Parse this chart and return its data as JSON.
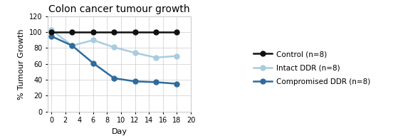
{
  "title": "Colon cancer tumour growth",
  "xlabel": "Day",
  "ylabel": "% Tumour Growth",
  "xlim": [
    -0.5,
    20
  ],
  "ylim": [
    0,
    120
  ],
  "xticks": [
    0,
    2,
    4,
    6,
    8,
    10,
    12,
    14,
    16,
    18,
    20
  ],
  "yticks": [
    0,
    20,
    40,
    60,
    80,
    100,
    120
  ],
  "series": [
    {
      "label": "Control (n=8)",
      "x": [
        0,
        3,
        6,
        9,
        12,
        15,
        18
      ],
      "y": [
        100,
        100,
        100,
        100,
        100,
        100,
        100
      ],
      "color": "#111111",
      "linewidth": 1.8,
      "marker": "o",
      "markersize": 5,
      "markerfacecolor": "#111111",
      "markeredgecolor": "#111111",
      "linestyle": "-",
      "zorder": 5
    },
    {
      "label": "Intact DDR (n=8)",
      "x": [
        0,
        3,
        6,
        9,
        12,
        15,
        18
      ],
      "y": [
        103,
        83,
        90,
        81,
        74,
        68,
        70
      ],
      "color": "#a8cce0",
      "linewidth": 1.8,
      "marker": "o",
      "markersize": 5,
      "markerfacecolor": "#a8cce0",
      "markeredgecolor": "#a8cce0",
      "linestyle": "-",
      "zorder": 4
    },
    {
      "label": "Compromised DDR (n=8)",
      "x": [
        0,
        3,
        6,
        9,
        12,
        15,
        18
      ],
      "y": [
        95,
        83,
        61,
        42,
        38,
        37,
        35
      ],
      "color": "#2e6b9e",
      "linewidth": 1.8,
      "marker": "o",
      "markersize": 5,
      "markerfacecolor": "#2e6b9e",
      "markeredgecolor": "#2e6b9e",
      "linestyle": "-",
      "zorder": 4
    }
  ],
  "background_color": "#ffffff",
  "grid": true,
  "grid_color": "#cccccc",
  "title_fontsize": 10,
  "axis_label_fontsize": 8,
  "tick_fontsize": 7,
  "legend_fontsize": 7.5
}
